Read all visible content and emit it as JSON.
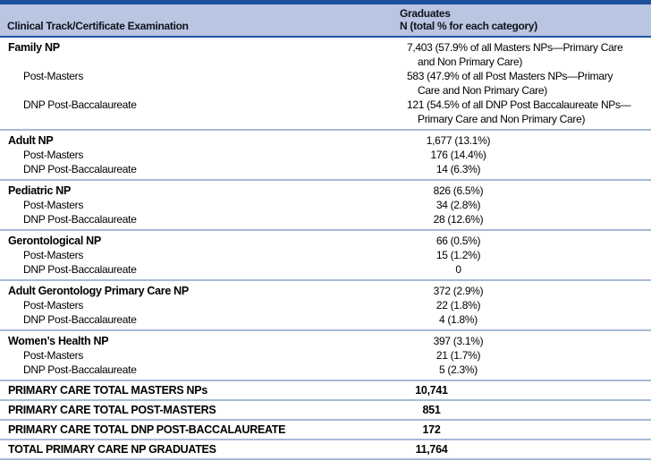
{
  "table": {
    "header": {
      "column1": "Clinical Track/Certificate Examination",
      "column2_line1": "Graduates",
      "column2_line2": "N (total % for each category)"
    },
    "colors": {
      "top_bar": "#1b4f9c",
      "header_background": "#b9c5e1",
      "header_rule": "#2257a4",
      "section_rule": "#a6bbd8"
    },
    "sections": [
      {
        "rows": [
          {
            "label": "Family NP",
            "value": "7,403 (57.9% of all Masters NPs—Primary Care and Non Primary Care)"
          },
          {
            "label": "Post-Masters",
            "value": "583 (47.9% of all Post Masters NPs—Primary Care and Non Primary Care)"
          },
          {
            "label": "DNP Post-Baccalaureate",
            "value": "121 (54.5% of all DNP Post Baccalaureate NPs—Primary Care and Non Primary Care)"
          }
        ]
      },
      {
        "rows": [
          {
            "label": "Adult NP",
            "value": "1,677 (13.1%)"
          },
          {
            "label": "Post-Masters",
            "value": "176 (14.4%)"
          },
          {
            "label": "DNP Post-Baccalaureate",
            "value": "14 (6.3%)"
          }
        ]
      },
      {
        "rows": [
          {
            "label": "Pediatric NP",
            "value": "826 (6.5%)"
          },
          {
            "label": "Post-Masters",
            "value": "34 (2.8%)"
          },
          {
            "label": "DNP Post-Baccalaureate",
            "value": "28 (12.6%)"
          }
        ]
      },
      {
        "rows": [
          {
            "label": "Gerontological NP",
            "value": "66 (0.5%)"
          },
          {
            "label": "Post-Masters",
            "value": "15 (1.2%)"
          },
          {
            "label": "DNP Post-Baccalaureate",
            "value": "0"
          }
        ]
      },
      {
        "rows": [
          {
            "label": "Adult Gerontology Primary Care NP",
            "value": "372 (2.9%)"
          },
          {
            "label": "Post-Masters",
            "value": "22 (1.8%)"
          },
          {
            "label": "DNP Post-Baccalaureate",
            "value": "4 (1.8%)"
          }
        ]
      },
      {
        "rows": [
          {
            "label": "Women’s Health NP",
            "value": "397 (3.1%)"
          },
          {
            "label": "Post-Masters",
            "value": "21 (1.7%)"
          },
          {
            "label": "DNP Post-Baccalaureate",
            "value": "5 (2.3%)"
          }
        ]
      }
    ],
    "totals": [
      {
        "label": "PRIMARY CARE TOTAL MASTERS NPs",
        "value": "10,741"
      },
      {
        "label": "PRIMARY CARE TOTAL POST-MASTERS",
        "value": "851"
      },
      {
        "label": "PRIMARY CARE TOTAL DNP POST-BACCALAUREATE",
        "value": "172"
      },
      {
        "label": "TOTAL PRIMARY CARE NP GRADUATES",
        "value": "11,764"
      }
    ]
  }
}
